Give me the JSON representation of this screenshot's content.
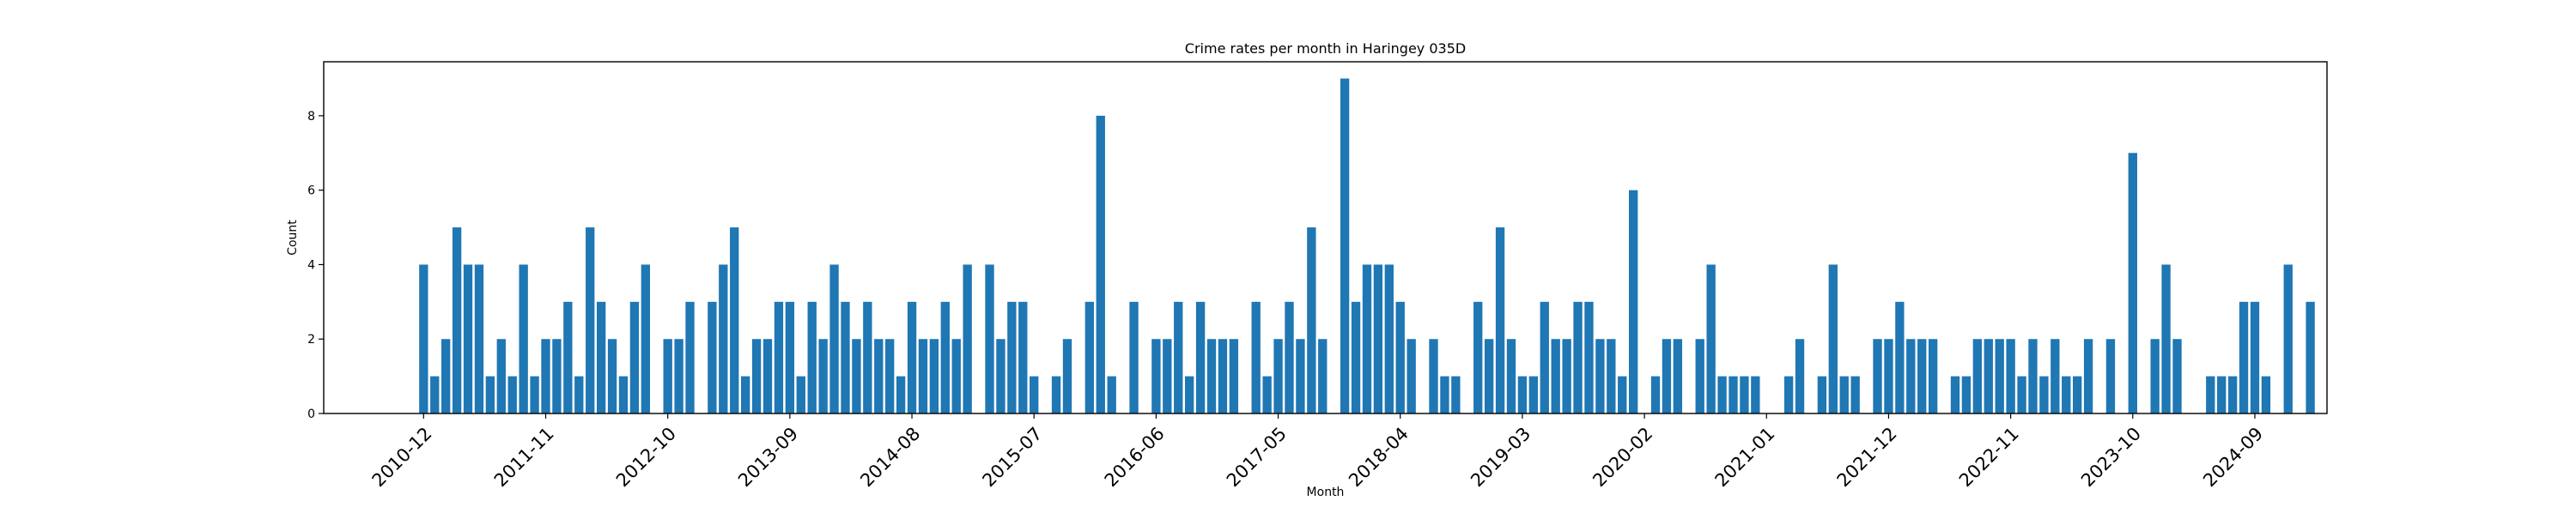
{
  "chart_data": {
    "type": "bar",
    "title": "Crime rates per month in Haringey 035D",
    "xlabel": "Month",
    "ylabel": "Count",
    "ylim": [
      0,
      9.45
    ],
    "yticks": [
      0,
      2,
      4,
      6,
      8
    ],
    "xtick_labels": [
      "2010-12",
      "2011-11",
      "2012-10",
      "2013-09",
      "2014-08",
      "2015-07",
      "2016-06",
      "2017-05",
      "2018-04",
      "2019-03",
      "2020-02",
      "2021-01",
      "2021-12",
      "2022-11",
      "2023-10",
      "2024-09"
    ],
    "xtick_months": [
      0,
      11,
      22,
      33,
      44,
      55,
      66,
      77,
      88,
      99,
      110,
      121,
      132,
      143,
      154,
      165
    ],
    "x_month_range": [
      -9,
      171.5
    ],
    "bar_color": "#1f77b4",
    "grid": false,
    "bars": [
      {
        "month": 0,
        "value": 4
      },
      {
        "month": 1,
        "value": 1
      },
      {
        "month": 2,
        "value": 2
      },
      {
        "month": 3,
        "value": 5
      },
      {
        "month": 4,
        "value": 4
      },
      {
        "month": 5,
        "value": 4
      },
      {
        "month": 6,
        "value": 1
      },
      {
        "month": 7,
        "value": 2
      },
      {
        "month": 8,
        "value": 1
      },
      {
        "month": 9,
        "value": 4
      },
      {
        "month": 10,
        "value": 1
      },
      {
        "month": 11,
        "value": 2
      },
      {
        "month": 12,
        "value": 2
      },
      {
        "month": 13,
        "value": 3
      },
      {
        "month": 14,
        "value": 1
      },
      {
        "month": 15,
        "value": 5
      },
      {
        "month": 16,
        "value": 3
      },
      {
        "month": 17,
        "value": 2
      },
      {
        "month": 18,
        "value": 1
      },
      {
        "month": 19,
        "value": 3
      },
      {
        "month": 20,
        "value": 4
      },
      {
        "month": 22,
        "value": 2
      },
      {
        "month": 23,
        "value": 2
      },
      {
        "month": 24,
        "value": 3
      },
      {
        "month": 26,
        "value": 3
      },
      {
        "month": 27,
        "value": 4
      },
      {
        "month": 28,
        "value": 5
      },
      {
        "month": 29,
        "value": 1
      },
      {
        "month": 30,
        "value": 2
      },
      {
        "month": 31,
        "value": 2
      },
      {
        "month": 32,
        "value": 3
      },
      {
        "month": 33,
        "value": 3
      },
      {
        "month": 34,
        "value": 1
      },
      {
        "month": 35,
        "value": 3
      },
      {
        "month": 36,
        "value": 2
      },
      {
        "month": 37,
        "value": 4
      },
      {
        "month": 38,
        "value": 3
      },
      {
        "month": 39,
        "value": 2
      },
      {
        "month": 40,
        "value": 3
      },
      {
        "month": 41,
        "value": 2
      },
      {
        "month": 42,
        "value": 2
      },
      {
        "month": 43,
        "value": 1
      },
      {
        "month": 44,
        "value": 3
      },
      {
        "month": 45,
        "value": 2
      },
      {
        "month": 46,
        "value": 2
      },
      {
        "month": 47,
        "value": 3
      },
      {
        "month": 48,
        "value": 2
      },
      {
        "month": 49,
        "value": 4
      },
      {
        "month": 51,
        "value": 4
      },
      {
        "month": 52,
        "value": 2
      },
      {
        "month": 53,
        "value": 3
      },
      {
        "month": 54,
        "value": 3
      },
      {
        "month": 55,
        "value": 1
      },
      {
        "month": 57,
        "value": 1
      },
      {
        "month": 58,
        "value": 2
      },
      {
        "month": 60,
        "value": 3
      },
      {
        "month": 61,
        "value": 8
      },
      {
        "month": 62,
        "value": 1
      },
      {
        "month": 64,
        "value": 3
      },
      {
        "month": 66,
        "value": 2
      },
      {
        "month": 67,
        "value": 2
      },
      {
        "month": 68,
        "value": 3
      },
      {
        "month": 69,
        "value": 1
      },
      {
        "month": 70,
        "value": 3
      },
      {
        "month": 71,
        "value": 2
      },
      {
        "month": 72,
        "value": 2
      },
      {
        "month": 73,
        "value": 2
      },
      {
        "month": 75,
        "value": 3
      },
      {
        "month": 76,
        "value": 1
      },
      {
        "month": 77,
        "value": 2
      },
      {
        "month": 78,
        "value": 3
      },
      {
        "month": 79,
        "value": 2
      },
      {
        "month": 80,
        "value": 5
      },
      {
        "month": 81,
        "value": 2
      },
      {
        "month": 83,
        "value": 9
      },
      {
        "month": 84,
        "value": 3
      },
      {
        "month": 85,
        "value": 4
      },
      {
        "month": 86,
        "value": 4
      },
      {
        "month": 87,
        "value": 4
      },
      {
        "month": 88,
        "value": 3
      },
      {
        "month": 89,
        "value": 2
      },
      {
        "month": 91,
        "value": 2
      },
      {
        "month": 92,
        "value": 1
      },
      {
        "month": 93,
        "value": 1
      },
      {
        "month": 95,
        "value": 3
      },
      {
        "month": 96,
        "value": 2
      },
      {
        "month": 97,
        "value": 5
      },
      {
        "month": 98,
        "value": 2
      },
      {
        "month": 99,
        "value": 1
      },
      {
        "month": 100,
        "value": 1
      },
      {
        "month": 101,
        "value": 3
      },
      {
        "month": 102,
        "value": 2
      },
      {
        "month": 103,
        "value": 2
      },
      {
        "month": 104,
        "value": 3
      },
      {
        "month": 105,
        "value": 3
      },
      {
        "month": 106,
        "value": 2
      },
      {
        "month": 107,
        "value": 2
      },
      {
        "month": 108,
        "value": 1
      },
      {
        "month": 109,
        "value": 6
      },
      {
        "month": 111,
        "value": 1
      },
      {
        "month": 112,
        "value": 2
      },
      {
        "month": 113,
        "value": 2
      },
      {
        "month": 115,
        "value": 2
      },
      {
        "month": 116,
        "value": 4
      },
      {
        "month": 117,
        "value": 1
      },
      {
        "month": 118,
        "value": 1
      },
      {
        "month": 119,
        "value": 1
      },
      {
        "month": 120,
        "value": 1
      },
      {
        "month": 123,
        "value": 1
      },
      {
        "month": 124,
        "value": 2
      },
      {
        "month": 126,
        "value": 1
      },
      {
        "month": 127,
        "value": 4
      },
      {
        "month": 128,
        "value": 1
      },
      {
        "month": 129,
        "value": 1
      },
      {
        "month": 131,
        "value": 2
      },
      {
        "month": 132,
        "value": 2
      },
      {
        "month": 133,
        "value": 3
      },
      {
        "month": 134,
        "value": 2
      },
      {
        "month": 135,
        "value": 2
      },
      {
        "month": 136,
        "value": 2
      },
      {
        "month": 138,
        "value": 1
      },
      {
        "month": 139,
        "value": 1
      },
      {
        "month": 140,
        "value": 2
      },
      {
        "month": 141,
        "value": 2
      },
      {
        "month": 142,
        "value": 2
      },
      {
        "month": 143,
        "value": 2
      },
      {
        "month": 144,
        "value": 1
      },
      {
        "month": 145,
        "value": 2
      },
      {
        "month": 146,
        "value": 1
      },
      {
        "month": 147,
        "value": 2
      },
      {
        "month": 148,
        "value": 1
      },
      {
        "month": 149,
        "value": 1
      },
      {
        "month": 150,
        "value": 2
      },
      {
        "month": 152,
        "value": 2
      },
      {
        "month": 154,
        "value": 7
      },
      {
        "month": 156,
        "value": 2
      },
      {
        "month": 157,
        "value": 4
      },
      {
        "month": 158,
        "value": 2
      },
      {
        "month": 161,
        "value": 1
      },
      {
        "month": 162,
        "value": 1
      },
      {
        "month": 163,
        "value": 1
      },
      {
        "month": 164,
        "value": 3
      },
      {
        "month": 165,
        "value": 3
      },
      {
        "month": 166,
        "value": 1
      },
      {
        "month": 168,
        "value": 4
      },
      {
        "month": 170,
        "value": 3
      }
    ]
  }
}
